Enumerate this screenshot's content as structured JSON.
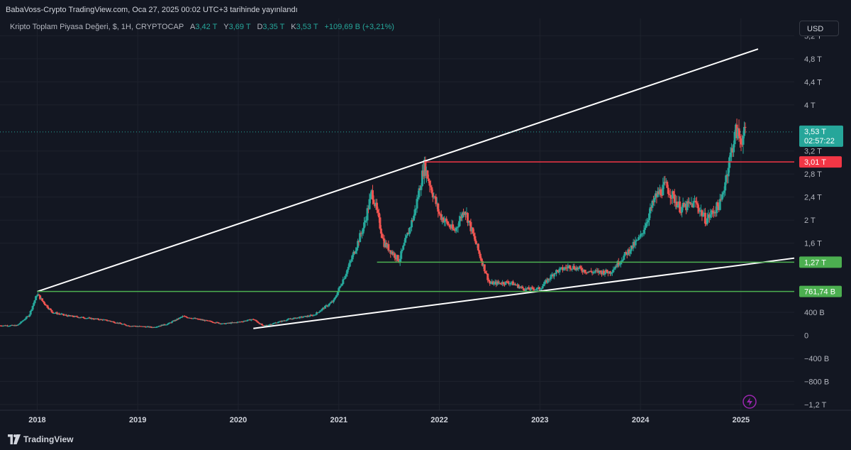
{
  "header": {
    "publisher_line": "BabaVoss-Crypto TradingView.com, Oca 27, 2025 00:02 UTC+3 tarihinde yayınlandı"
  },
  "legend": {
    "symbol": "Kripto Toplam Piyasa Değeri, $, 1H, CRYPTOCAP",
    "open_key": "A",
    "open_value": "3,42 T",
    "high_key": "Y",
    "high_value": "3,69 T",
    "low_key": "D",
    "low_value": "3,35 T",
    "close_key": "K",
    "close_value": "3,53 T",
    "change": "+109,69 B (+3,21%)",
    "up_color": "#26a69a"
  },
  "currency_button": "USD",
  "footer": {
    "brand": "TradingView",
    "logo_icon": "tradingview-logo-icon"
  },
  "colors": {
    "background": "#131722",
    "grid": "#1e222d",
    "up": "#26a69a",
    "down": "#ef5350",
    "trendline": "#ffffff",
    "support": "#4caf50",
    "resistance": "#f23645"
  },
  "chart_data": {
    "type": "candlestick",
    "y_unit": "USD",
    "ylim": [
      -1.3,
      5.5
    ],
    "y_ticks": [
      {
        "v": 5.2,
        "label": "5,2 T"
      },
      {
        "v": 4.8,
        "label": "4,8 T"
      },
      {
        "v": 4.4,
        "label": "4,4 T"
      },
      {
        "v": 4.0,
        "label": "4 T"
      },
      {
        "v": 3.2,
        "label": "3,2 T"
      },
      {
        "v": 2.8,
        "label": "2,8 T"
      },
      {
        "v": 2.4,
        "label": "2,4 T"
      },
      {
        "v": 2.0,
        "label": "2 T"
      },
      {
        "v": 1.6,
        "label": "1,6 T"
      },
      {
        "v": 0.4,
        "label": "400 B"
      },
      {
        "v": 0.0,
        "label": "0"
      },
      {
        "v": -0.4,
        "label": "−400 B"
      },
      {
        "v": -0.8,
        "label": "−800 B"
      },
      {
        "v": -1.2,
        "label": "−1,2 T"
      }
    ],
    "x_ticks": [
      "2018",
      "2019",
      "2020",
      "2021",
      "2022",
      "2023",
      "2024",
      "2025"
    ],
    "x_range": [
      2017.63,
      2025.53
    ],
    "price_path": [
      [
        2017.63,
        0.17
      ],
      [
        2017.8,
        0.17
      ],
      [
        2017.92,
        0.35
      ],
      [
        2018.0,
        0.72
      ],
      [
        2018.05,
        0.6
      ],
      [
        2018.15,
        0.4
      ],
      [
        2018.3,
        0.34
      ],
      [
        2018.5,
        0.3
      ],
      [
        2018.7,
        0.26
      ],
      [
        2018.9,
        0.17
      ],
      [
        2019.15,
        0.14
      ],
      [
        2019.3,
        0.2
      ],
      [
        2019.45,
        0.33
      ],
      [
        2019.6,
        0.28
      ],
      [
        2019.85,
        0.2
      ],
      [
        2020.0,
        0.23
      ],
      [
        2020.15,
        0.28
      ],
      [
        2020.25,
        0.16
      ],
      [
        2020.5,
        0.28
      ],
      [
        2020.75,
        0.35
      ],
      [
        2020.95,
        0.6
      ],
      [
        2021.1,
        1.2
      ],
      [
        2021.25,
        1.9
      ],
      [
        2021.33,
        2.5
      ],
      [
        2021.45,
        1.6
      ],
      [
        2021.6,
        1.3
      ],
      [
        2021.75,
        2.1
      ],
      [
        2021.85,
        2.95
      ],
      [
        2022.0,
        2.1
      ],
      [
        2022.15,
        1.8
      ],
      [
        2022.25,
        2.2
      ],
      [
        2022.4,
        1.4
      ],
      [
        2022.5,
        0.9
      ],
      [
        2022.7,
        0.92
      ],
      [
        2022.85,
        0.8
      ],
      [
        2023.0,
        0.81
      ],
      [
        2023.15,
        1.1
      ],
      [
        2023.3,
        1.2
      ],
      [
        2023.5,
        1.1
      ],
      [
        2023.7,
        1.1
      ],
      [
        2023.85,
        1.4
      ],
      [
        2024.0,
        1.7
      ],
      [
        2024.15,
        2.4
      ],
      [
        2024.25,
        2.6
      ],
      [
        2024.4,
        2.2
      ],
      [
        2024.55,
        2.3
      ],
      [
        2024.65,
        2.0
      ],
      [
        2024.8,
        2.3
      ],
      [
        2024.88,
        3.0
      ],
      [
        2024.95,
        3.55
      ],
      [
        2025.0,
        3.4
      ],
      [
        2025.05,
        3.53
      ]
    ],
    "current_price_label": "3,53 T",
    "countdown_label": "02:57:22",
    "price_labels": [
      {
        "v": 3.01,
        "label": "3,01 T",
        "kind": "resistance"
      },
      {
        "v": 1.27,
        "label": "1,27 T",
        "kind": "support"
      },
      {
        "v": 0.76174,
        "label": "761,74 B",
        "kind": "support"
      }
    ],
    "trendlines": [
      {
        "from": [
          2018.0,
          0.76
        ],
        "to": [
          2025.17,
          4.97
        ]
      },
      {
        "from": [
          2020.15,
          0.12
        ],
        "to": [
          2025.53,
          1.34
        ]
      }
    ],
    "horizontal_levels": [
      {
        "v": 3.01,
        "from": 2021.85,
        "to": 2025.53,
        "kind": "resistance"
      },
      {
        "v": 1.27,
        "from": 2021.38,
        "to": 2025.53,
        "kind": "support"
      },
      {
        "v": 0.76174,
        "from": 2018.0,
        "to": 2025.53,
        "kind": "support"
      }
    ]
  }
}
